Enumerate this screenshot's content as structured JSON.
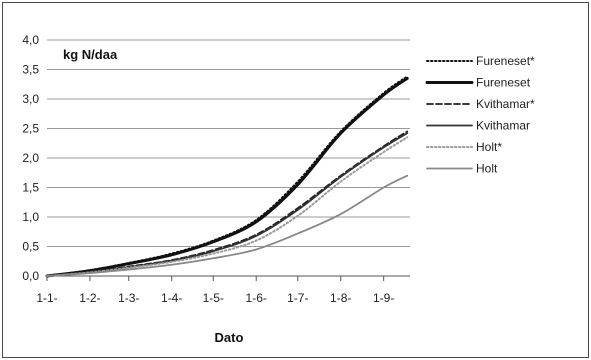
{
  "chart_data": {
    "type": "line",
    "title": "kg N/daa",
    "xlabel": "Dato",
    "ylabel": "",
    "categories": [
      "1-1-",
      "1-2-",
      "1-3-",
      "1-4-",
      "1-5-",
      "1-6-",
      "1-7-",
      "1-8-",
      "1-9-"
    ],
    "x": [
      0,
      31,
      59,
      90,
      120,
      151,
      181,
      212,
      243,
      260
    ],
    "ylim": [
      0,
      4
    ],
    "yticks": [
      "0,0",
      "0,5",
      "1,0",
      "1,5",
      "2,0",
      "2,5",
      "3,0",
      "3,5",
      "4,0"
    ],
    "grid": "horizontal",
    "legend_position": "right",
    "series": [
      {
        "name": "Fureneset*",
        "color": "#111111",
        "dash": "dotted",
        "values": [
          0,
          0.1,
          0.22,
          0.38,
          0.6,
          0.95,
          1.6,
          2.45,
          3.1,
          3.38
        ]
      },
      {
        "name": "Fureneset",
        "color": "#111111",
        "dash": "solid-thick",
        "values": [
          0,
          0.09,
          0.21,
          0.36,
          0.58,
          0.92,
          1.55,
          2.42,
          3.07,
          3.35
        ]
      },
      {
        "name": "Kvithamar*",
        "color": "#222222",
        "dash": "dashed",
        "values": [
          0,
          0.07,
          0.16,
          0.27,
          0.44,
          0.7,
          1.15,
          1.7,
          2.2,
          2.45
        ]
      },
      {
        "name": "Kvithamar",
        "color": "#333333",
        "dash": "solid",
        "values": [
          0,
          0.07,
          0.15,
          0.26,
          0.42,
          0.68,
          1.12,
          1.68,
          2.18,
          2.42
        ]
      },
      {
        "name": "Holt*",
        "color": "#9a9a9a",
        "dash": "dotted",
        "values": [
          0,
          0.06,
          0.14,
          0.24,
          0.38,
          0.6,
          1.02,
          1.6,
          2.1,
          2.35
        ]
      },
      {
        "name": "Holt",
        "color": "#888888",
        "dash": "solid",
        "values": [
          0,
          0.05,
          0.11,
          0.19,
          0.3,
          0.45,
          0.72,
          1.05,
          1.5,
          1.7
        ]
      }
    ]
  }
}
